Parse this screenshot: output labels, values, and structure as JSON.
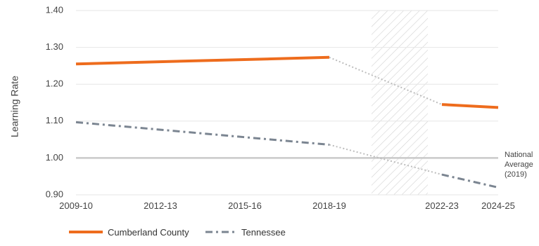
{
  "chart_data": {
    "type": "line",
    "ylabel": "Learning Rate",
    "xlabel": "",
    "title": "",
    "ylim": [
      0.9,
      1.4
    ],
    "yticks": [
      0.9,
      1.0,
      1.1,
      1.2,
      1.3,
      1.4
    ],
    "ytick_labels": [
      "0.90",
      "1.00",
      "1.10",
      "1.20",
      "1.30",
      "1.40"
    ],
    "x_start_year": 2009,
    "x_end_year": 2024,
    "xticks": [
      {
        "year": 2009,
        "label": "2009-10"
      },
      {
        "year": 2012,
        "label": "2012-13"
      },
      {
        "year": 2015,
        "label": "2015-16"
      },
      {
        "year": 2018,
        "label": "2018-19"
      },
      {
        "year": 2022,
        "label": "2022-23"
      },
      {
        "year": 2024,
        "label": "2024-25"
      }
    ],
    "gap_region": {
      "start_year": 2019.5,
      "end_year": 2021.5,
      "pattern": "diagonal-hatch"
    },
    "reference_line": {
      "value": 1.0,
      "label_lines": [
        "National",
        "Average",
        "(2019)"
      ],
      "color": "#c9c9c9"
    },
    "series": [
      {
        "name": "Cumberland County",
        "color": "#ee6c1d",
        "style": "solid",
        "segments": [
          {
            "style": "solid",
            "points": [
              [
                2009,
                1.255
              ],
              [
                2018,
                1.273
              ]
            ]
          },
          {
            "style": "dotted",
            "points": [
              [
                2018,
                1.273
              ],
              [
                2022,
                1.145
              ]
            ]
          },
          {
            "style": "solid",
            "points": [
              [
                2022,
                1.145
              ],
              [
                2024,
                1.137
              ]
            ]
          }
        ]
      },
      {
        "name": "Tennessee",
        "color": "#7b8591",
        "style": "dashed",
        "segments": [
          {
            "style": "dashed",
            "points": [
              [
                2009,
                1.097
              ],
              [
                2018,
                1.036
              ]
            ]
          },
          {
            "style": "dotted",
            "points": [
              [
                2018,
                1.036
              ],
              [
                2022,
                0.955
              ]
            ]
          },
          {
            "style": "dashed",
            "points": [
              [
                2022,
                0.955
              ],
              [
                2024,
                0.92
              ]
            ]
          }
        ]
      }
    ],
    "legend": {
      "position": "bottom-left"
    },
    "grid": true
  }
}
